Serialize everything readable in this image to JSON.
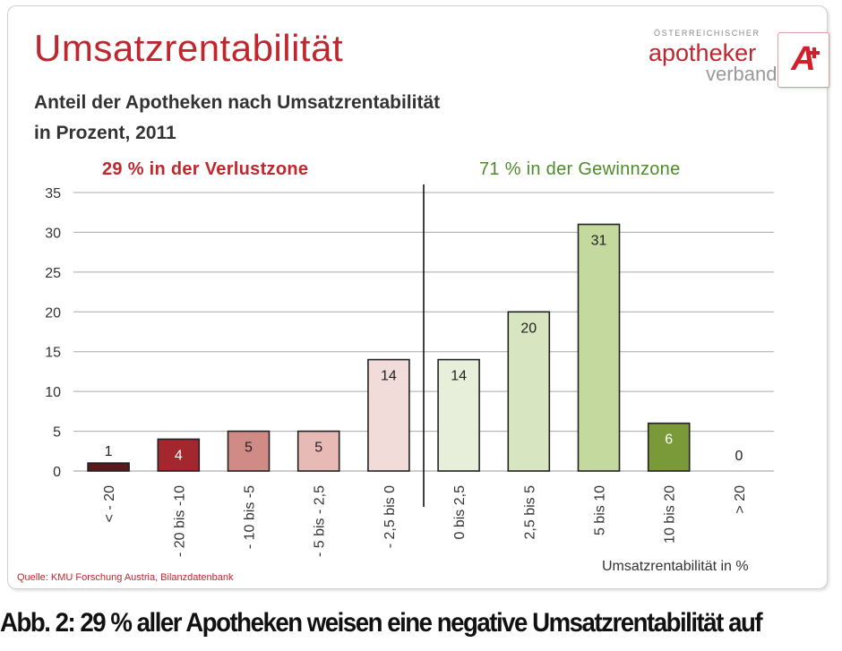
{
  "header": {
    "title": "Umsatzrentabilität",
    "subtitle_line1": "Anteil der Apotheken nach Umsatzrentabilität",
    "subtitle_line2": "in Prozent, 2011"
  },
  "logo": {
    "top_text": "ÖSTERREICHISCHER",
    "main_text": "apotheker",
    "sub_text": "verband",
    "mark": "A"
  },
  "annotations": {
    "loss_zone": "29 % in der Verlustzone",
    "gain_zone": "71 % in der Gewinnzone"
  },
  "source": "Quelle: KMU Forschung Austria, Bilanzdatenbank",
  "caption": "Abb. 2: 29 % aller Apotheken weisen eine negative Umsatzrentabilität auf",
  "chart_data": {
    "type": "bar",
    "title": "Anteil der Apotheken nach Umsatzrentabilität in Prozent, 2011",
    "xlabel": "Umsatzrentabilität in %",
    "ylabel": "",
    "ylim": [
      0,
      35
    ],
    "yticks": [
      0,
      5,
      10,
      15,
      20,
      25,
      30,
      35
    ],
    "grid": true,
    "categories": [
      "< - 20",
      "- 20 bis -10",
      "- 10 bis -5",
      "- 5 bis - 2,5",
      "- 2,5 bis 0",
      "0 bis 2,5",
      "2,5 bis 5",
      "5 bis 10",
      "10 bis 20",
      "> 20"
    ],
    "values": [
      1,
      4,
      5,
      5,
      14,
      14,
      20,
      31,
      6,
      0
    ],
    "bar_colors": [
      "#5a1a1c",
      "#a3282d",
      "#d18b87",
      "#e8bab6",
      "#f2dcda",
      "#e7efdb",
      "#d7e6c0",
      "#c3d99e",
      "#7a9a3a",
      "#ffffff"
    ],
    "label_colors": [
      "#222222",
      "#ffffff",
      "#222222",
      "#222222",
      "#222222",
      "#222222",
      "#222222",
      "#222222",
      "#ffffff",
      "#222222"
    ],
    "divider_after_index": 4
  }
}
